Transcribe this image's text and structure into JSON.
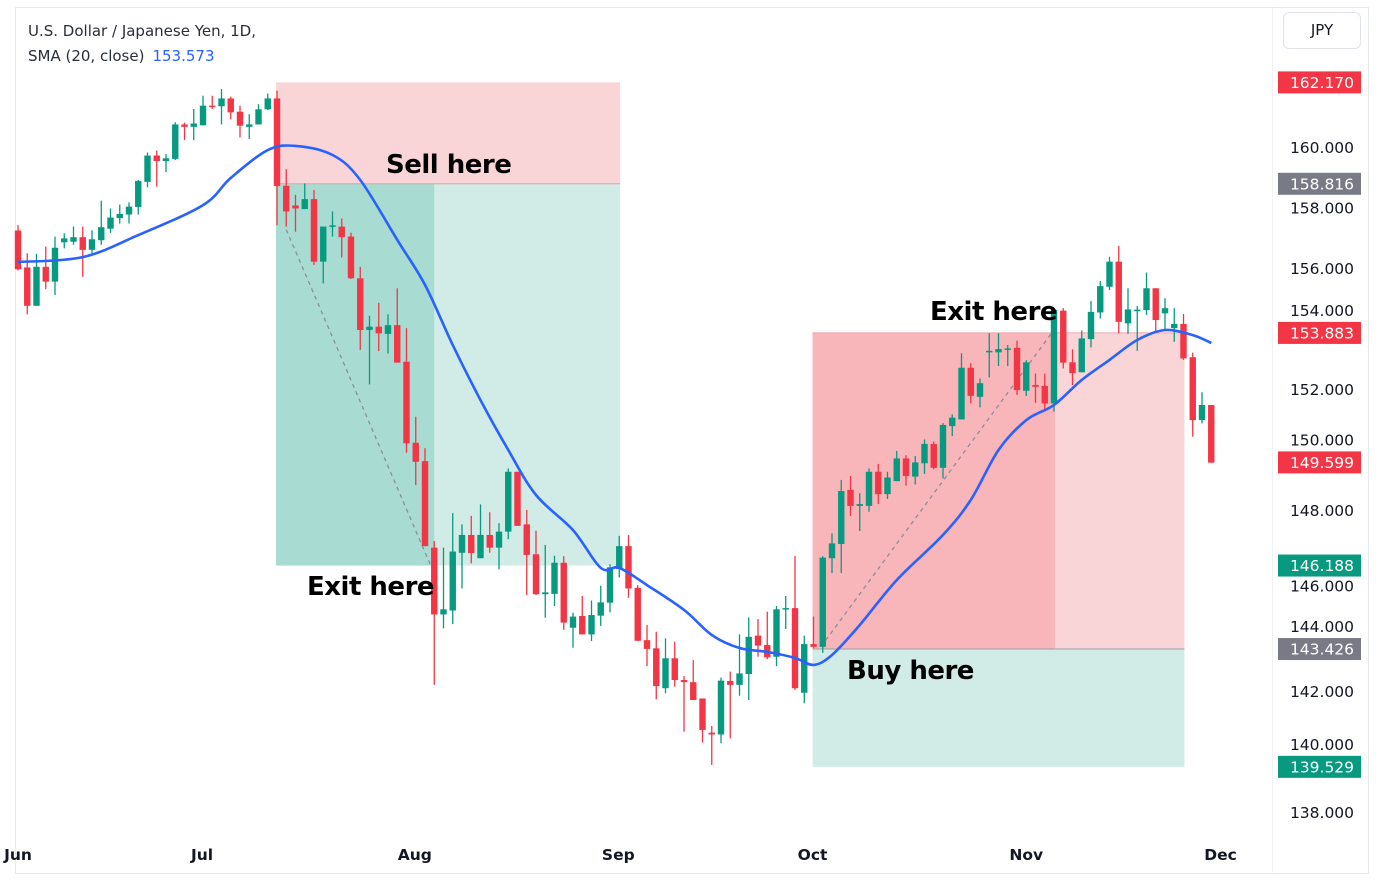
{
  "legend": {
    "symbol": "U.S. Dollar / Japanese Yen, 1D,",
    "indicator": "SMA (20, close)",
    "indicator_value": "153.573"
  },
  "currency_button": "JPY",
  "annotations": {
    "sell": "Sell here",
    "exit_short": "Exit here",
    "exit_long": "Exit here",
    "buy": "Buy here"
  },
  "colors": {
    "up": "#089981",
    "down": "#f23645",
    "sma": "#2962ff",
    "label_red": "#f23645",
    "label_gray": "#787b86",
    "label_green": "#089981",
    "profit_dark": "#a8dbd1",
    "profit_light": "#d1ece6",
    "loss_dark": "#f8b5ba",
    "loss_light": "#fad5d8"
  },
  "chart_data": {
    "type": "candlestick",
    "title": "U.S. Dollar / Japanese Yen, 1D",
    "ylim": [
      136.8,
      163.0
    ],
    "y_ticks": [
      "138.000",
      "140.000",
      "142.000",
      "144.000",
      "146.000",
      "148.000",
      "150.000",
      "152.000",
      "154.000",
      "156.000",
      "158.000",
      "160.000"
    ],
    "x_ticks": [
      {
        "label": "Jun",
        "bar": -0.4
      },
      {
        "label": "Jul",
        "bar": 19.9
      },
      {
        "label": "Aug",
        "bar": 42.9
      },
      {
        "label": "Sep",
        "bar": 64.9
      },
      {
        "label": "Oct",
        "bar": 85.9
      },
      {
        "label": "Nov",
        "bar": 109
      },
      {
        "label": "Dec",
        "bar": 130
      }
    ],
    "ohlc": [
      [
        157.27,
        157.45,
        155.95,
        155.99
      ],
      [
        156.05,
        156.52,
        154.5,
        154.78
      ],
      [
        154.78,
        156.5,
        154.78,
        156.07
      ],
      [
        156.07,
        156.74,
        155.33,
        155.58
      ],
      [
        155.58,
        157.07,
        155.14,
        156.7
      ],
      [
        156.88,
        157.18,
        156.68,
        157.01
      ],
      [
        156.9,
        157.4,
        156.8,
        157.05
      ],
      [
        157.05,
        157.4,
        155.74,
        156.63
      ],
      [
        156.63,
        157.28,
        156.52,
        156.98
      ],
      [
        156.95,
        158.26,
        156.8,
        157.38
      ],
      [
        157.33,
        158.0,
        157.19,
        157.7
      ],
      [
        157.68,
        158.13,
        157.5,
        157.82
      ],
      [
        157.8,
        158.2,
        157.5,
        158.06
      ],
      [
        158.05,
        158.94,
        157.8,
        158.91
      ],
      [
        158.88,
        159.85,
        158.7,
        159.75
      ],
      [
        159.75,
        159.92,
        158.72,
        159.57
      ],
      [
        159.57,
        159.8,
        159.2,
        159.66
      ],
      [
        159.64,
        160.85,
        159.6,
        160.78
      ],
      [
        160.78,
        160.84,
        160.26,
        160.7
      ],
      [
        160.7,
        161.29,
        160.26,
        160.81
      ],
      [
        160.75,
        161.73,
        160.75,
        161.4
      ],
      [
        161.4,
        161.73,
        161.29,
        161.38
      ],
      [
        161.38,
        161.95,
        160.78,
        161.64
      ],
      [
        161.64,
        161.7,
        160.95,
        161.18
      ],
      [
        161.2,
        161.4,
        160.35,
        160.74
      ],
      [
        160.7,
        161.12,
        160.3,
        160.78
      ],
      [
        160.78,
        161.45,
        160.78,
        161.28
      ],
      [
        161.28,
        161.8,
        161.25,
        161.64
      ],
      [
        161.64,
        161.9,
        157.45,
        158.74
      ],
      [
        158.75,
        159.3,
        157.4,
        157.9
      ],
      [
        158.1,
        158.45,
        157.23,
        158.0
      ],
      [
        157.98,
        158.83,
        157.98,
        158.31
      ],
      [
        158.31,
        158.61,
        156.13,
        156.24
      ],
      [
        156.24,
        157.4,
        155.52,
        157.4
      ],
      [
        157.4,
        157.9,
        157.07,
        157.44
      ],
      [
        157.4,
        157.67,
        156.38,
        157.05
      ],
      [
        157.07,
        157.2,
        155.67,
        155.69
      ],
      [
        155.69,
        156.07,
        153.32,
        153.98
      ],
      [
        153.98,
        154.45,
        152.18,
        154.09
      ],
      [
        154.09,
        154.88,
        153.28,
        153.87
      ],
      [
        153.85,
        154.5,
        153.2,
        154.14
      ],
      [
        154.14,
        155.36,
        152.9,
        152.9
      ],
      [
        152.93,
        154.04,
        149.92,
        150.23
      ],
      [
        150.25,
        151.11,
        148.85,
        149.62
      ],
      [
        149.64,
        150.07,
        146.83,
        146.83
      ],
      [
        146.78,
        147.0,
        142.24,
        144.57
      ],
      [
        144.57,
        146.78,
        144.11,
        144.74
      ],
      [
        144.7,
        147.92,
        144.25,
        146.65
      ],
      [
        146.61,
        147.55,
        145.43,
        147.2
      ],
      [
        147.2,
        147.83,
        146.26,
        146.6
      ],
      [
        146.43,
        148.21,
        146.43,
        147.2
      ],
      [
        147.2,
        147.95,
        146.61,
        146.78
      ],
      [
        146.78,
        147.59,
        146.06,
        147.31
      ],
      [
        147.31,
        149.4,
        147.06,
        149.29
      ],
      [
        149.29,
        149.29,
        147.5,
        147.5
      ],
      [
        147.55,
        148.03,
        145.21,
        146.54
      ],
      [
        146.56,
        147.34,
        145.21,
        145.24
      ],
      [
        145.24,
        146.87,
        144.46,
        145.3
      ],
      [
        145.25,
        146.51,
        144.85,
        146.28
      ],
      [
        146.28,
        146.5,
        144.06,
        144.3
      ],
      [
        144.13,
        144.63,
        143.47,
        144.5
      ],
      [
        144.52,
        145.18,
        143.91,
        143.91
      ],
      [
        143.91,
        145.03,
        143.69,
        144.55
      ],
      [
        144.53,
        145.52,
        144.19,
        144.97
      ],
      [
        144.96,
        146.23,
        144.64,
        146.13
      ],
      [
        146.07,
        147.17,
        145.79,
        146.83
      ],
      [
        146.83,
        147.2,
        145.12,
        145.43
      ],
      [
        145.45,
        145.54,
        143.69,
        143.7
      ],
      [
        143.72,
        144.22,
        142.86,
        143.43
      ],
      [
        143.45,
        144.0,
        141.76,
        142.2
      ],
      [
        142.13,
        143.78,
        141.96,
        143.12
      ],
      [
        143.12,
        143.67,
        142.18,
        142.4
      ],
      [
        142.4,
        142.53,
        140.69,
        142.33
      ],
      [
        142.33,
        143.06,
        141.74,
        141.74
      ],
      [
        141.79,
        141.79,
        140.33,
        140.75
      ],
      [
        140.66,
        140.88,
        139.59,
        140.6
      ],
      [
        140.6,
        142.48,
        140.31,
        142.38
      ],
      [
        142.37,
        142.68,
        140.47,
        142.24
      ],
      [
        142.24,
        143.91,
        141.88,
        142.62
      ],
      [
        142.6,
        144.47,
        141.74,
        143.83
      ],
      [
        143.87,
        144.42,
        143.17,
        143.54
      ],
      [
        143.56,
        144.66,
        143.09,
        143.15
      ],
      [
        143.17,
        144.85,
        142.86,
        144.74
      ],
      [
        144.74,
        145.18,
        144.09,
        144.78
      ],
      [
        144.78,
        146.5,
        142.07,
        142.13
      ],
      [
        141.98,
        143.87,
        141.63,
        143.59
      ],
      [
        143.59,
        144.5,
        143.45,
        143.5
      ],
      [
        143.5,
        146.5,
        143.3,
        146.45
      ],
      [
        146.43,
        147.25,
        145.94,
        146.92
      ],
      [
        146.9,
        149.02,
        145.94,
        148.65
      ],
      [
        148.69,
        149.15,
        147.83,
        148.16
      ],
      [
        148.16,
        148.58,
        147.33,
        148.22
      ],
      [
        148.16,
        149.4,
        147.97,
        149.29
      ],
      [
        149.29,
        149.55,
        148.22,
        148.55
      ],
      [
        148.55,
        149.29,
        148.39,
        149.1
      ],
      [
        148.98,
        149.98,
        148.98,
        149.73
      ],
      [
        149.73,
        149.84,
        148.83,
        149.15
      ],
      [
        149.13,
        149.81,
        148.87,
        149.6
      ],
      [
        149.57,
        150.36,
        149.22,
        150.21
      ],
      [
        150.21,
        150.29,
        149.37,
        149.42
      ],
      [
        149.42,
        150.9,
        149.07,
        150.84
      ],
      [
        150.8,
        151.19,
        150.47,
        151.08
      ],
      [
        151.02,
        153.21,
        151.02,
        152.73
      ],
      [
        152.73,
        152.88,
        151.55,
        151.8
      ],
      [
        151.77,
        152.38,
        151.42,
        152.22
      ],
      [
        153.24,
        153.87,
        152.41,
        153.29
      ],
      [
        153.24,
        153.87,
        152.79,
        153.35
      ],
      [
        153.34,
        153.48,
        152.79,
        153.37
      ],
      [
        153.39,
        153.63,
        151.83,
        151.99
      ],
      [
        151.97,
        152.98,
        151.8,
        152.91
      ],
      [
        152.16,
        152.54,
        151.57,
        152.1
      ],
      [
        152.13,
        152.54,
        151.36,
        151.55
      ],
      [
        151.55,
        154.7,
        151.28,
        154.64
      ],
      [
        154.62,
        154.7,
        152.71,
        152.9
      ],
      [
        152.91,
        153.34,
        152.16,
        152.55
      ],
      [
        152.58,
        153.96,
        152.58,
        153.7
      ],
      [
        153.68,
        154.94,
        153.4,
        154.58
      ],
      [
        154.56,
        155.6,
        154.36,
        155.43
      ],
      [
        155.41,
        156.4,
        155.3,
        156.24
      ],
      [
        156.24,
        156.76,
        153.87,
        154.25
      ],
      [
        154.2,
        155.36,
        153.85,
        154.66
      ],
      [
        154.6,
        154.77,
        153.29,
        154.65
      ],
      [
        154.64,
        155.88,
        154.48,
        155.36
      ],
      [
        155.36,
        155.36,
        153.92,
        154.31
      ],
      [
        154.53,
        155.03,
        153.98,
        154.7
      ],
      [
        154.04,
        154.7,
        153.59,
        154.18
      ],
      [
        154.18,
        154.51,
        152.99,
        153.04
      ],
      [
        153.08,
        153.23,
        150.45,
        151.0
      ],
      [
        151.0,
        151.92,
        150.89,
        151.5
      ],
      [
        151.5,
        151.5,
        149.59,
        149.59
      ]
    ],
    "sma": {
      "name": "SMA (20, close)",
      "points": [
        [
          0,
          156.23
        ],
        [
          7,
          156.39
        ],
        [
          13,
          157.12
        ],
        [
          20,
          158.11
        ],
        [
          23,
          159.01
        ],
        [
          27,
          159.93
        ],
        [
          30,
          160.07
        ],
        [
          34,
          159.77
        ],
        [
          37,
          158.94
        ],
        [
          41,
          156.96
        ],
        [
          44,
          155.47
        ],
        [
          47,
          153.48
        ],
        [
          50,
          151.66
        ],
        [
          53,
          150.01
        ],
        [
          56,
          148.52
        ],
        [
          60,
          147.36
        ],
        [
          63,
          146.11
        ],
        [
          65,
          146.11
        ],
        [
          68,
          145.54
        ],
        [
          72,
          144.72
        ],
        [
          75,
          143.89
        ],
        [
          78,
          143.46
        ],
        [
          81,
          143.33
        ],
        [
          84,
          143.13
        ],
        [
          86,
          142.9
        ],
        [
          88,
          143.23
        ],
        [
          91,
          144.22
        ],
        [
          95,
          145.71
        ],
        [
          100,
          147.2
        ],
        [
          103,
          148.36
        ],
        [
          106,
          150.01
        ],
        [
          109,
          151.0
        ],
        [
          112,
          151.5
        ],
        [
          115,
          152.33
        ],
        [
          118,
          152.99
        ],
        [
          121,
          153.65
        ],
        [
          124,
          153.98
        ],
        [
          127,
          153.81
        ],
        [
          129,
          153.55
        ]
      ]
    },
    "short_position": {
      "entry": 158.816,
      "stop": 162.17,
      "target": 146.188,
      "start_bar": 27.9,
      "exit_bar": 45.0,
      "end_bar": 65.1,
      "entry_label": "158.816",
      "stop_label": "162.170",
      "target_label": "146.188"
    },
    "long_position": {
      "entry": 143.426,
      "stop": 139.529,
      "target": 153.883,
      "start_bar": 85.9,
      "exit_bar": 112.1,
      "end_bar": 126.1,
      "entry_label": "143.426",
      "stop_label": "139.529",
      "target_label": "153.883"
    },
    "price_labels": [
      {
        "text": "162.170",
        "value": 162.17,
        "color": "#f23645"
      },
      {
        "text": "158.816",
        "value": 158.816,
        "color": "#787b86"
      },
      {
        "text": "153.883",
        "value": 153.883,
        "color": "#f23645"
      },
      {
        "text": "149.599",
        "value": 149.599,
        "color": "#f23645"
      },
      {
        "text": "146.188",
        "value": 146.188,
        "color": "#089981"
      },
      {
        "text": "143.426",
        "value": 143.426,
        "color": "#787b86"
      },
      {
        "text": "139.529",
        "value": 139.529,
        "color": "#089981"
      }
    ]
  }
}
